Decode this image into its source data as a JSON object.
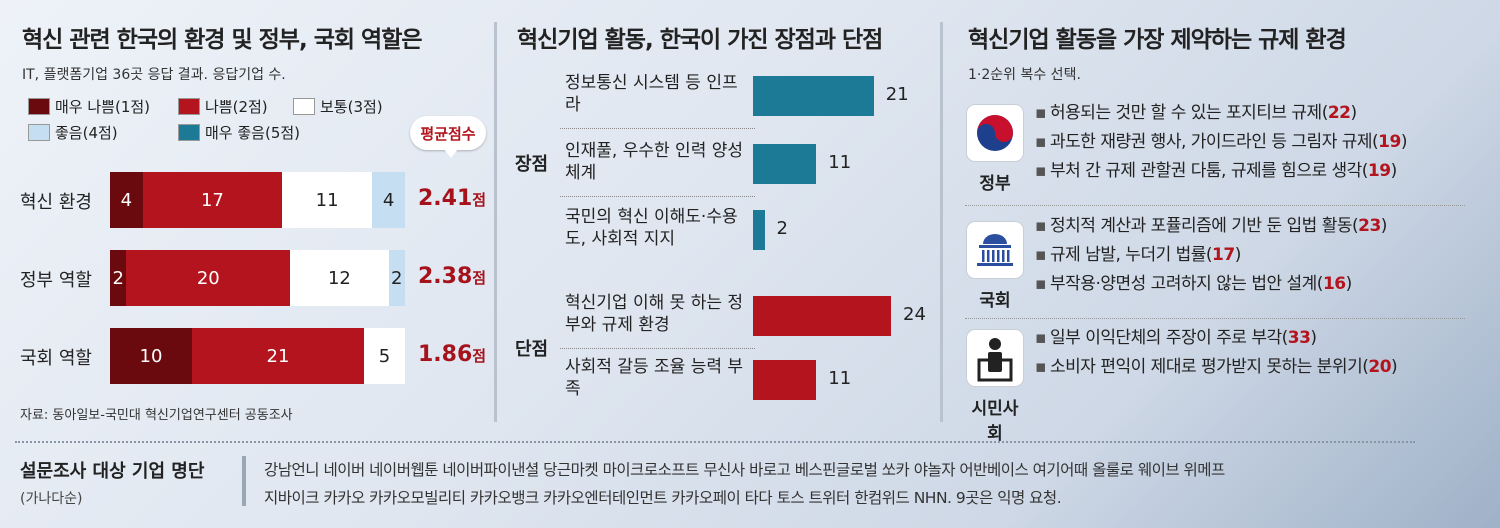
{
  "colors": {
    "very_bad": "#6b0a0e",
    "bad": "#b3141d",
    "normal": "#ffffff",
    "good": "#c5def1",
    "very_good": "#1d7a96",
    "accent_red": "#b3141d"
  },
  "panel1": {
    "title": "혁신 관련 한국의 환경 및 정부, 국회 역할은",
    "subtitle": "IT, 플랫폼기업 36곳 응답 결과. 응답기업 수.",
    "avg_badge": "평균점수",
    "avg_unit": "점",
    "source": "자료: 동아일보-국민대 혁신기업연구센터 공동조사"
  },
  "panel2": {
    "title": "혁신기업 활동, 한국이 가진 장점과 단점",
    "groups": [
      "장점",
      "단점"
    ]
  },
  "panel3": {
    "title": "혁신기업 활동을 가장 제약하는 규제 환경",
    "subtitle": "1·2순위 복수 선택.",
    "categories": [
      {
        "name": "정부",
        "icon": "taegeuk-icon",
        "items": [
          {
            "text": "허용되는 것만 할 수 있는 포지티브 규제",
            "count": "22"
          },
          {
            "text": "과도한 재량권 행사, 가이드라인 등 그림자 규제",
            "count": "19"
          },
          {
            "text": "부처 간 규제 관할권 다툼, 규제를 힘으로 생각",
            "count": "19"
          }
        ]
      },
      {
        "name": "국회",
        "icon": "assembly-building-icon",
        "items": [
          {
            "text": "정치적 계산과 포퓰리즘에 기반 둔 입법 활동",
            "count": "23"
          },
          {
            "text": "규제 남발, 누더기 법률",
            "count": "17"
          },
          {
            "text": "부작용·양면성 고려하지 않는 법안 설계",
            "count": "16"
          }
        ]
      },
      {
        "name": "시민사회",
        "icon": "person-icon",
        "items": [
          {
            "text": "일부 이익단체의 주장이 주로 부각",
            "count": "33"
          },
          {
            "text": "소비자 편익이 제대로 평가받지 못하는 분위기",
            "count": "20"
          }
        ]
      }
    ]
  },
  "bottom": {
    "title": "설문조사 대상 기업 명단",
    "subtitle": "(가나다순)",
    "line1": "강남언니 네이버 네이버웹툰 네이버파이낸셜 당근마켓 마이크로소프트 무신사 바로고 베스핀글로벌 쏘카 야놀자 어반베이스 여기어때 올룰로 웨이브 위메프",
    "line2": "지바이크 카카오 카카오모빌리티 카카오뱅크 카카오엔터테인먼트 카카오페이 타다 토스 트위터 한컴위드 NHN. 9곳은 익명 요청."
  },
  "chart_data": [
    {
      "type": "bar",
      "stacked": true,
      "orientation": "horizontal",
      "legend": [
        "매우 나쁨(1점)",
        "나쁨(2점)",
        "보통(3점)",
        "좋음(4점)",
        "매우 좋음(5점)"
      ],
      "categories": [
        "혁신 환경",
        "정부 역할",
        "국회 역할"
      ],
      "series": [
        {
          "name": "매우 나쁨(1점)",
          "values": [
            4,
            2,
            10
          ]
        },
        {
          "name": "나쁨(2점)",
          "values": [
            17,
            20,
            21
          ]
        },
        {
          "name": "보통(3점)",
          "values": [
            11,
            12,
            5
          ]
        },
        {
          "name": "좋음(4점)",
          "values": [
            4,
            2,
            0
          ]
        },
        {
          "name": "매우 좋음(5점)",
          "values": [
            0,
            0,
            0
          ]
        }
      ],
      "averages": [
        "2.41",
        "2.38",
        "1.86"
      ],
      "legend_position": "top"
    },
    {
      "type": "bar",
      "orientation": "horizontal",
      "groups": [
        {
          "name": "장점",
          "color": "#1d7a96",
          "items": [
            {
              "label": "정보통신 시스템 등 인프라",
              "value": 21
            },
            {
              "label": "인재풀, 우수한 인력 양성 체계",
              "value": 11
            },
            {
              "label": "국민의 혁신 이해도·수용도, 사회적 지지",
              "value": 2
            }
          ]
        },
        {
          "name": "단점",
          "color": "#b3141d",
          "items": [
            {
              "label": "혁신기업 이해 못 하는 정부와 규제 환경",
              "value": 24
            },
            {
              "label": "사회적 갈등 조율 능력 부족",
              "value": 11
            }
          ]
        }
      ],
      "xlim": [
        0,
        24
      ]
    }
  ]
}
